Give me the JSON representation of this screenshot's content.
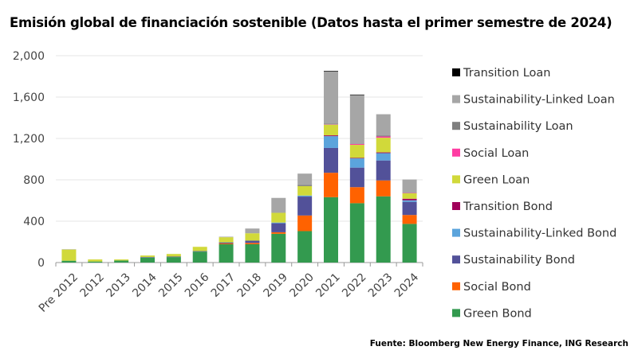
{
  "chart_data": {
    "type": "bar",
    "stacked": true,
    "title": "Emisión global de financiación sostenible (Datos hasta el primer semestre de 2024)",
    "source": "Fuente: Bloomberg New Energy Finance, ING Research",
    "xlabel": "",
    "ylabel": "",
    "ylim": [
      0,
      2000
    ],
    "yticks": [
      0,
      400,
      800,
      1200,
      1600,
      2000
    ],
    "ytick_labels": [
      "0",
      "400",
      "800",
      "1,200",
      "1,600",
      "2,000"
    ],
    "grid": true,
    "legend_position": "right",
    "categories": [
      "Pre 2012",
      "2012",
      "2013",
      "2014",
      "2015",
      "2016",
      "2017",
      "2018",
      "2019",
      "2020",
      "2021",
      "2022",
      "2023",
      "2024"
    ],
    "series": [
      {
        "name": "Green Bond",
        "color": "#339a4f",
        "values": [
          18,
          10,
          20,
          48,
          53,
          106,
          177,
          177,
          278,
          304,
          632,
          574,
          640,
          374
        ]
      },
      {
        "name": "Social Bond",
        "color": "#ff6200",
        "values": [
          0,
          0,
          0,
          0,
          0,
          0,
          8,
          13,
          15,
          151,
          236,
          155,
          154,
          86
        ]
      },
      {
        "name": "Sustainability Bond",
        "color": "#525199",
        "values": [
          0,
          0,
          0,
          5,
          5,
          5,
          10,
          22,
          87,
          183,
          240,
          189,
          193,
          127
        ]
      },
      {
        "name": "Sustainability-Linked Bond",
        "color": "#5ba4dc",
        "values": [
          0,
          0,
          0,
          0,
          0,
          0,
          0,
          0,
          7,
          10,
          114,
          89,
          71,
          15
        ]
      },
      {
        "name": "Transition Bond",
        "color": "#a0005a",
        "values": [
          0,
          0,
          0,
          0,
          0,
          0,
          0,
          0,
          0,
          0,
          8,
          5,
          7,
          15
        ]
      },
      {
        "name": "Green Loan",
        "color": "#d1d93a",
        "values": [
          108,
          20,
          10,
          15,
          25,
          41,
          50,
          71,
          94,
          91,
          103,
          126,
          142,
          53
        ]
      },
      {
        "name": "Social Loan",
        "color": "#ff3da3",
        "values": [
          0,
          0,
          0,
          0,
          0,
          0,
          0,
          0,
          0,
          0,
          3,
          8,
          12,
          3
        ]
      },
      {
        "name": "Sustainability Loan",
        "color": "#7f7f7f",
        "values": [
          0,
          0,
          0,
          0,
          0,
          0,
          0,
          0,
          0,
          13,
          6,
          3,
          8,
          3
        ]
      },
      {
        "name": "Sustainability-Linked Loan",
        "color": "#a6a6a6",
        "values": [
          3,
          0,
          0,
          0,
          0,
          0,
          5,
          46,
          144,
          108,
          504,
          470,
          207,
          127
        ]
      },
      {
        "name": "Transition Loan",
        "color": "#000000",
        "values": [
          0,
          0,
          0,
          0,
          0,
          0,
          0,
          0,
          0,
          0,
          6,
          5,
          0,
          0
        ]
      }
    ]
  }
}
